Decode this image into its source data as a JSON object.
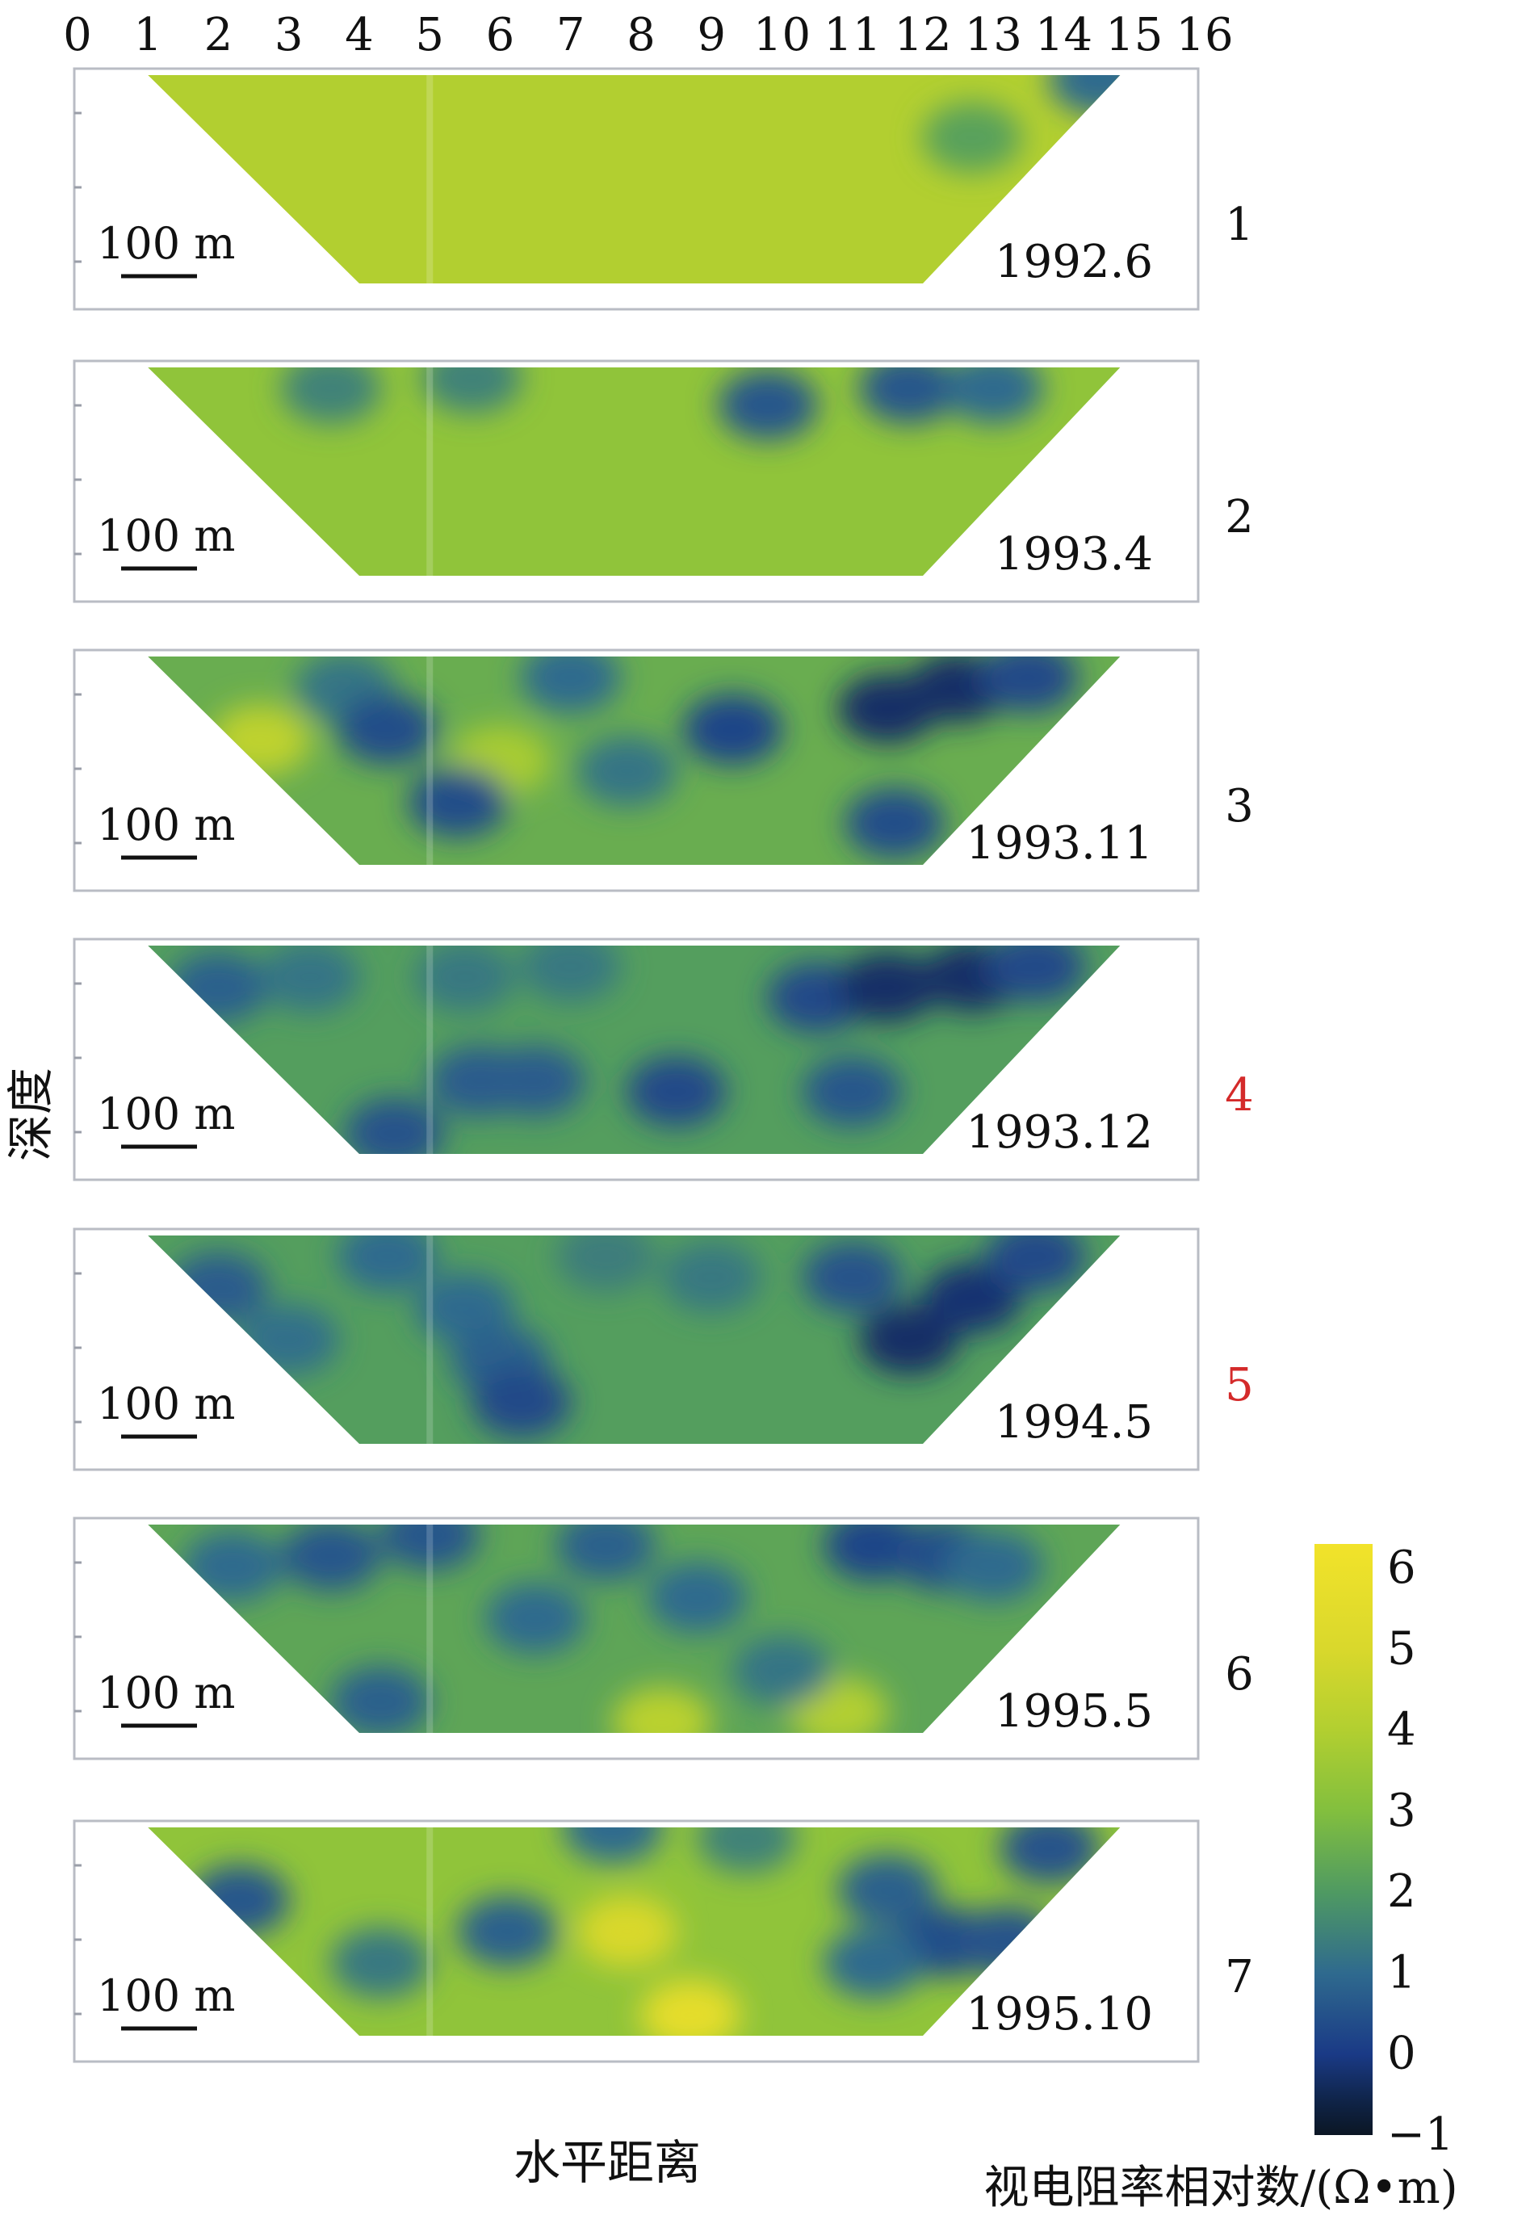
{
  "figure": {
    "top_axis_ticks": [
      "0",
      "1",
      "2",
      "3",
      "4",
      "5",
      "6",
      "7",
      "8",
      "9",
      "10",
      "11",
      "12",
      "13",
      "14",
      "15",
      "16"
    ],
    "y_axis_title": "深度",
    "x_axis_title": "水平距离",
    "colorbar": {
      "title": "视电阻率相对数/(Ω•m)",
      "ticks": [
        "6",
        "5",
        "4",
        "3",
        "2",
        "1",
        "0",
        "−1"
      ],
      "range": [
        -1,
        6.3
      ],
      "gradient": [
        {
          "value": -1,
          "color": "#0b1624"
        },
        {
          "value": -0.6,
          "color": "#0f2346"
        },
        {
          "value": 0,
          "color": "#1a3a86"
        },
        {
          "value": 1,
          "color": "#2f6a8e"
        },
        {
          "value": 2,
          "color": "#4f9a62"
        },
        {
          "value": 3,
          "color": "#82bf3e"
        },
        {
          "value": 4,
          "color": "#b2cf30"
        },
        {
          "value": 5,
          "color": "#d9d82c"
        },
        {
          "value": 6.3,
          "color": "#f2e32a"
        }
      ]
    },
    "panels": [
      {
        "id": "1",
        "date": "1992.6",
        "scale_bar": "100 m",
        "number_color": "#111111",
        "base": 4.0,
        "lows": [
          {
            "x": 12.7,
            "depth": 0.3,
            "level": 2.2
          },
          {
            "x": 14.5,
            "depth": 0.02,
            "level": 1.0
          }
        ]
      },
      {
        "id": "2",
        "date": "1993.4",
        "scale_bar": "100 m",
        "number_color": "#111111",
        "base": 3.3,
        "lows": [
          {
            "x": 3.6,
            "depth": 0.1,
            "level": 1.5
          },
          {
            "x": 5.6,
            "depth": 0.05,
            "level": 1.5
          },
          {
            "x": 9.8,
            "depth": 0.18,
            "level": 0.6
          },
          {
            "x": 11.8,
            "depth": 0.1,
            "level": 0.6
          },
          {
            "x": 13.0,
            "depth": 0.1,
            "level": 1.0
          }
        ]
      },
      {
        "id": "3",
        "date": "1993.11",
        "scale_bar": "100 m",
        "number_color": "#111111",
        "base": 2.5,
        "lows": [
          {
            "x": 3.8,
            "depth": 0.15,
            "level": 1.2
          },
          {
            "x": 4.4,
            "depth": 0.35,
            "level": 0.4
          },
          {
            "x": 5.4,
            "depth": 0.7,
            "level": 0.4
          },
          {
            "x": 7.0,
            "depth": 0.1,
            "level": 1.0
          },
          {
            "x": 9.3,
            "depth": 0.35,
            "level": 0.2
          },
          {
            "x": 7.8,
            "depth": 0.55,
            "level": 1.2
          },
          {
            "x": 11.5,
            "depth": 0.25,
            "level": -0.3
          },
          {
            "x": 12.5,
            "depth": 0.15,
            "level": -0.3
          },
          {
            "x": 13.5,
            "depth": 0.1,
            "level": 0.3
          },
          {
            "x": 11.6,
            "depth": 0.8,
            "level": 0.4
          }
        ],
        "highs": [
          {
            "x": 2.6,
            "depth": 0.4,
            "level": 4.3
          },
          {
            "x": 6.0,
            "depth": 0.5,
            "level": 3.8
          }
        ]
      },
      {
        "id": "4",
        "date": "1993.12",
        "scale_bar": "100 m",
        "number_color": "#d42a2a",
        "base": 2.1,
        "lows": [
          {
            "x": 2.0,
            "depth": 0.2,
            "level": 0.8
          },
          {
            "x": 3.3,
            "depth": 0.15,
            "level": 1.2
          },
          {
            "x": 5.5,
            "depth": 0.15,
            "level": 1.3
          },
          {
            "x": 5.7,
            "depth": 0.65,
            "level": 0.7
          },
          {
            "x": 6.5,
            "depth": 0.65,
            "level": 0.7
          },
          {
            "x": 8.5,
            "depth": 0.7,
            "level": 0.3
          },
          {
            "x": 4.5,
            "depth": 0.9,
            "level": 0.5
          },
          {
            "x": 7.0,
            "depth": 0.1,
            "level": 1.3
          },
          {
            "x": 10.5,
            "depth": 0.25,
            "level": 0.3
          },
          {
            "x": 11.5,
            "depth": 0.2,
            "level": -0.3
          },
          {
            "x": 12.7,
            "depth": 0.15,
            "level": -0.3
          },
          {
            "x": 13.6,
            "depth": 0.1,
            "level": 0.3
          },
          {
            "x": 11.0,
            "depth": 0.7,
            "level": 0.6
          }
        ]
      },
      {
        "id": "5",
        "date": "1994.5",
        "scale_bar": "100 m",
        "number_color": "#d42a2a",
        "base": 2.1,
        "lows": [
          {
            "x": 2.0,
            "depth": 0.25,
            "level": 0.7
          },
          {
            "x": 3.0,
            "depth": 0.5,
            "level": 1.1
          },
          {
            "x": 4.4,
            "depth": 0.1,
            "level": 1.0
          },
          {
            "x": 5.5,
            "depth": 0.35,
            "level": 1.0
          },
          {
            "x": 6.0,
            "depth": 0.6,
            "level": 0.8
          },
          {
            "x": 6.3,
            "depth": 0.8,
            "level": 0.3
          },
          {
            "x": 7.5,
            "depth": 0.1,
            "level": 1.4
          },
          {
            "x": 9.0,
            "depth": 0.2,
            "level": 1.3
          },
          {
            "x": 11.0,
            "depth": 0.2,
            "level": 0.5
          },
          {
            "x": 11.8,
            "depth": 0.5,
            "level": -0.3
          },
          {
            "x": 12.7,
            "depth": 0.3,
            "level": -0.2
          },
          {
            "x": 13.6,
            "depth": 0.1,
            "level": 0.3
          }
        ]
      },
      {
        "id": "6",
        "date": "1995.5",
        "scale_bar": "100 m",
        "number_color": "#111111",
        "base": 2.3,
        "lows": [
          {
            "x": 2.2,
            "depth": 0.2,
            "level": 1.0
          },
          {
            "x": 3.6,
            "depth": 0.15,
            "level": 0.6
          },
          {
            "x": 5.0,
            "depth": 0.05,
            "level": 0.6
          },
          {
            "x": 6.5,
            "depth": 0.45,
            "level": 1.0
          },
          {
            "x": 7.5,
            "depth": 0.1,
            "level": 0.8
          },
          {
            "x": 8.8,
            "depth": 0.35,
            "level": 1.0
          },
          {
            "x": 11.3,
            "depth": 0.1,
            "level": 0.2
          },
          {
            "x": 12.3,
            "depth": 0.15,
            "level": 0.4
          },
          {
            "x": 4.3,
            "depth": 0.85,
            "level": 0.8
          },
          {
            "x": 10.0,
            "depth": 0.7,
            "level": 1.2
          },
          {
            "x": 13.0,
            "depth": 0.2,
            "level": 1.0
          }
        ],
        "highs": [
          {
            "x": 8.3,
            "depth": 0.95,
            "level": 4.2
          },
          {
            "x": 10.8,
            "depth": 0.9,
            "level": 4.0
          }
        ]
      },
      {
        "id": "7",
        "date": "1995.10",
        "scale_bar": "100 m",
        "number_color": "#111111",
        "base": 3.3,
        "lows": [
          {
            "x": 2.3,
            "depth": 0.35,
            "level": 0.6
          },
          {
            "x": 4.3,
            "depth": 0.65,
            "level": 1.3
          },
          {
            "x": 6.1,
            "depth": 0.5,
            "level": 0.8
          },
          {
            "x": 7.6,
            "depth": 0.0,
            "level": 1.0
          },
          {
            "x": 9.5,
            "depth": 0.05,
            "level": 1.5
          },
          {
            "x": 11.5,
            "depth": 0.3,
            "level": 0.8
          },
          {
            "x": 12.3,
            "depth": 0.55,
            "level": 0.4
          },
          {
            "x": 13.2,
            "depth": 0.55,
            "level": 0.5
          },
          {
            "x": 13.8,
            "depth": 0.1,
            "level": 0.5
          },
          {
            "x": 11.3,
            "depth": 0.65,
            "level": 1.0
          }
        ],
        "highs": [
          {
            "x": 7.8,
            "depth": 0.5,
            "level": 5.0
          },
          {
            "x": 8.7,
            "depth": 0.9,
            "level": 5.6
          }
        ]
      }
    ]
  }
}
